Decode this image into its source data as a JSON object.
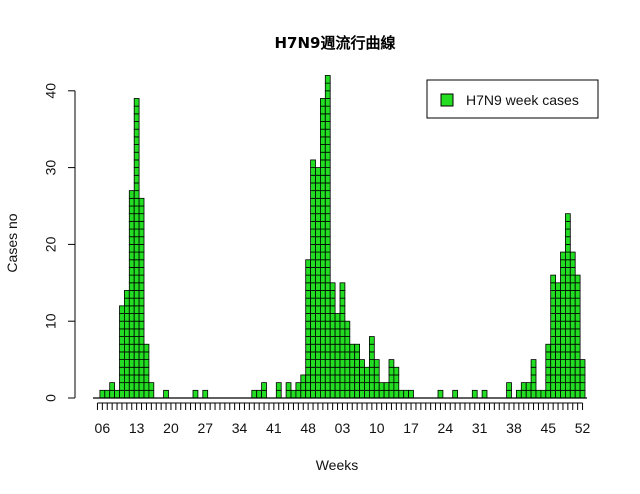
{
  "chart_data": {
    "type": "bar",
    "title": "H7N9週流行曲線",
    "xlabel": "Weeks",
    "ylabel": "Cases no",
    "ylim": [
      0,
      42
    ],
    "y_ticks": [
      0,
      10,
      20,
      30,
      40
    ],
    "x_tick_labels": [
      "06",
      "13",
      "20",
      "27",
      "34",
      "41",
      "48",
      "03",
      "10",
      "17",
      "24",
      "31",
      "38",
      "45",
      "52"
    ],
    "x_tick_label_bar_index": [
      1,
      8,
      15,
      22,
      29,
      36,
      43,
      50,
      57,
      64,
      71,
      78,
      85,
      92,
      99
    ],
    "legend": {
      "position": "top-right",
      "entries": [
        "H7N9 week cases"
      ]
    },
    "bar_color": "#22dd22",
    "grid": false,
    "series": [
      {
        "name": "H7N9 week cases",
        "values": [
          0,
          1,
          1,
          2,
          1,
          12,
          14,
          27,
          39,
          26,
          7,
          2,
          0,
          0,
          1,
          0,
          0,
          0,
          0,
          0,
          1,
          0,
          1,
          0,
          0,
          0,
          0,
          0,
          0,
          0,
          0,
          0,
          1,
          1,
          2,
          0,
          0,
          2,
          0,
          2,
          1,
          2,
          3,
          18,
          31,
          30,
          39,
          42,
          15,
          11,
          15,
          10,
          7,
          7,
          5,
          4,
          8,
          5,
          2,
          2,
          5,
          4,
          1,
          1,
          1,
          0,
          0,
          0,
          0,
          0,
          1,
          0,
          0,
          1,
          0,
          0,
          0,
          1,
          0,
          1,
          0,
          0,
          0,
          0,
          2,
          0,
          1,
          2,
          2,
          5,
          1,
          1,
          7,
          16,
          15,
          19,
          24,
          19,
          16,
          5
        ]
      }
    ]
  }
}
